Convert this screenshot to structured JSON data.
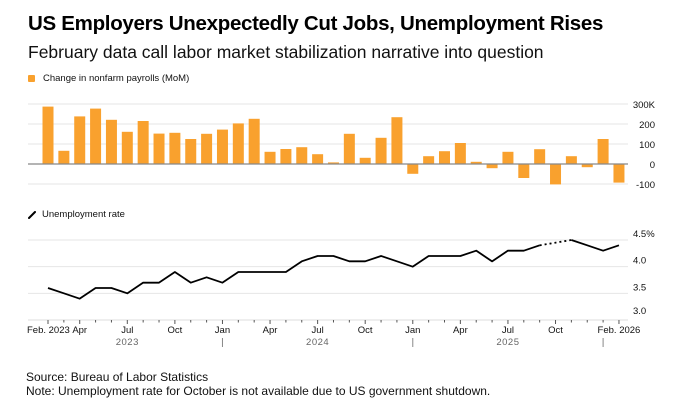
{
  "header": {
    "title": "US Employers Unexpectedly Cut Jobs, Unemployment Rises",
    "subtitle": "February data call labor market stabilization narrative into question"
  },
  "footer": {
    "source": "Source: Bureau of Labor Statistics",
    "note": "Note: Unemployment rate for October is not available due to US government shutdown."
  },
  "colors": {
    "bar": "#F9A12E",
    "line": "#000000",
    "grid": "#e6e6e6",
    "axis": "#888888"
  },
  "chart_data": [
    {
      "type": "bar",
      "title": "Change in nonfarm payrolls (MoM)",
      "legend": "Change in nonfarm payrolls (MoM)",
      "legend_position": "top-left",
      "ylabel": "",
      "ylim": [
        -100,
        300
      ],
      "yticks": [
        300,
        200,
        100,
        0,
        -100
      ],
      "ytick_labels": [
        "300K",
        "200",
        "100",
        "0",
        "-100"
      ],
      "grid": true,
      "x": [
        "2023-02",
        "2023-03",
        "2023-04",
        "2023-05",
        "2023-06",
        "2023-07",
        "2023-08",
        "2023-09",
        "2023-10",
        "2023-11",
        "2023-12",
        "2024-01",
        "2024-02",
        "2024-03",
        "2024-04",
        "2024-05",
        "2024-06",
        "2024-07",
        "2024-08",
        "2024-09",
        "2024-10",
        "2024-11",
        "2024-12",
        "2025-01",
        "2025-02",
        "2025-03",
        "2025-04",
        "2025-05",
        "2025-06",
        "2025-07",
        "2025-08",
        "2025-09",
        "2025-10",
        "2025-11",
        "2025-12",
        "2026-01",
        "2026-02"
      ],
      "values": [
        287,
        66,
        238,
        277,
        221,
        161,
        215,
        152,
        156,
        125,
        151,
        172,
        203,
        226,
        61,
        75,
        84,
        49,
        8,
        151,
        31,
        131,
        234,
        -49,
        39,
        64,
        105,
        11,
        -21,
        61,
        -70,
        74,
        -102,
        39,
        -16,
        125,
        -93
      ]
    },
    {
      "type": "line",
      "title": "Unemployment rate",
      "legend": "Unemployment rate",
      "legend_position": "top-left",
      "ylim": [
        3.0,
        4.5
      ],
      "yticks": [
        4.5,
        4.0,
        3.5,
        3.0
      ],
      "ytick_labels": [
        "4.5%",
        "4.0",
        "3.5",
        "3.0"
      ],
      "grid": true,
      "x": [
        "2023-02",
        "2023-03",
        "2023-04",
        "2023-05",
        "2023-06",
        "2023-07",
        "2023-08",
        "2023-09",
        "2023-10",
        "2023-11",
        "2023-12",
        "2024-01",
        "2024-02",
        "2024-03",
        "2024-04",
        "2024-05",
        "2024-06",
        "2024-07",
        "2024-08",
        "2024-09",
        "2024-10",
        "2024-11",
        "2024-12",
        "2025-01",
        "2025-02",
        "2025-03",
        "2025-04",
        "2025-05",
        "2025-06",
        "2025-07",
        "2025-08",
        "2025-09",
        "2025-10",
        "2025-11",
        "2025-12",
        "2026-01",
        "2026-02"
      ],
      "values": [
        3.6,
        3.5,
        3.4,
        3.6,
        3.6,
        3.5,
        3.7,
        3.7,
        3.9,
        3.7,
        3.8,
        3.7,
        3.9,
        3.9,
        3.9,
        3.9,
        4.1,
        4.2,
        4.2,
        4.1,
        4.1,
        4.2,
        4.1,
        4.0,
        4.2,
        4.2,
        4.2,
        4.3,
        4.1,
        4.3,
        4.3,
        4.4,
        null,
        4.5,
        4.4,
        4.3,
        4.4
      ],
      "missing_note": "October 2025 not available (dotted line bridges gap)"
    }
  ],
  "xaxis": {
    "month_labels": [
      {
        "index": 0,
        "label": "Feb. 2023"
      },
      {
        "index": 2,
        "label": "Apr"
      },
      {
        "index": 5,
        "label": "Jul"
      },
      {
        "index": 8,
        "label": "Oct"
      },
      {
        "index": 11,
        "label": "Jan"
      },
      {
        "index": 14,
        "label": "Apr"
      },
      {
        "index": 17,
        "label": "Jul"
      },
      {
        "index": 20,
        "label": "Oct"
      },
      {
        "index": 23,
        "label": "Jan"
      },
      {
        "index": 26,
        "label": "Apr"
      },
      {
        "index": 29,
        "label": "Jul"
      },
      {
        "index": 32,
        "label": "Oct"
      },
      {
        "index": 36,
        "label": "Feb. 2026"
      }
    ],
    "year_labels": [
      {
        "index": 5,
        "label": "2023"
      },
      {
        "index": 17,
        "label": "2024"
      },
      {
        "index": 29,
        "label": "2025"
      }
    ],
    "year_dividers": [
      11,
      23,
      35
    ]
  }
}
